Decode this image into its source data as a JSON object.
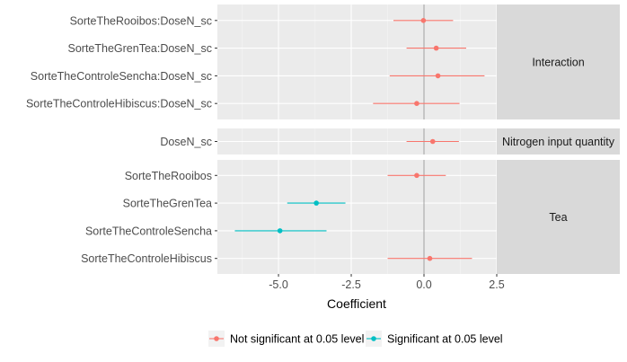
{
  "chart_data": {
    "type": "scatter",
    "xlabel": "Coefficient",
    "xlim": [
      -7.1,
      2.5
    ],
    "x_ticks": [
      -5.0,
      -2.5,
      0.0,
      2.5
    ],
    "x_tick_labels": [
      "-5.0",
      "-2.5",
      "0.0",
      "2.5"
    ],
    "reference_line_x": 0,
    "grid": true,
    "legend_position": "bottom",
    "colors": {
      "not_significant": "#F8766D",
      "significant": "#00BFC4"
    },
    "panels": [
      {
        "strip_label": "Interaction",
        "terms": [
          {
            "label": "SorteTheRooibos:DoseN_sc",
            "estimate": -0.02,
            "lower": -1.05,
            "upper": 1.0,
            "significance": "not_significant"
          },
          {
            "label": "SorteTheGrenTea:DoseN_sc",
            "estimate": 0.42,
            "lower": -0.6,
            "upper": 1.45,
            "significance": "not_significant"
          },
          {
            "label": "SorteTheControleSencha:DoseN_sc",
            "estimate": 0.48,
            "lower": -1.18,
            "upper": 2.08,
            "significance": "not_significant"
          },
          {
            "label": "SorteTheControleHibiscus:DoseN_sc",
            "estimate": -0.25,
            "lower": -1.75,
            "upper": 1.22,
            "significance": "not_significant"
          }
        ]
      },
      {
        "strip_label": "Nitrogen input quantity",
        "terms": [
          {
            "label": "DoseN_sc",
            "estimate": 0.3,
            "lower": -0.6,
            "upper": 1.2,
            "significance": "not_significant"
          }
        ]
      },
      {
        "strip_label": "Tea",
        "terms": [
          {
            "label": "SorteTheRooibos",
            "estimate": -0.25,
            "lower": -1.25,
            "upper": 0.75,
            "significance": "not_significant"
          },
          {
            "label": "SorteTheGrenTea",
            "estimate": -3.7,
            "lower": -4.7,
            "upper": -2.7,
            "significance": "significant"
          },
          {
            "label": "SorteTheControleSencha",
            "estimate": -4.95,
            "lower": -6.5,
            "upper": -3.35,
            "significance": "significant"
          },
          {
            "label": "SorteTheControleHibiscus",
            "estimate": 0.2,
            "lower": -1.25,
            "upper": 1.65,
            "significance": "not_significant"
          }
        ]
      }
    ],
    "legend": [
      {
        "label": "Not significant at 0.05 level",
        "significance": "not_significant"
      },
      {
        "label": "Significant at 0.05 level",
        "significance": "significant"
      }
    ]
  }
}
